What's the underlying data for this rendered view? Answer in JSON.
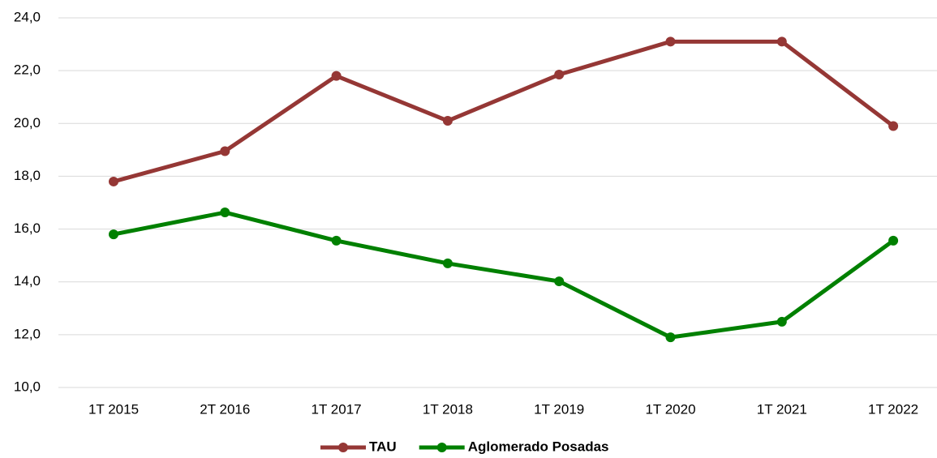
{
  "chart_data": {
    "type": "line",
    "categories": [
      "1T 2015",
      "2T 2016",
      "1T 2017",
      "1T 2018",
      "1T 2019",
      "1T 2020",
      "1T 2021",
      "1T 2022"
    ],
    "series": [
      {
        "name": "TAU",
        "color": "#953735",
        "values": [
          17.8,
          18.95,
          21.8,
          20.1,
          21.85,
          23.1,
          23.1,
          19.9
        ]
      },
      {
        "name": "Aglomerado Posadas",
        "color": "#008000",
        "values": [
          15.8,
          16.63,
          15.56,
          14.7,
          14.02,
          11.9,
          12.49,
          15.56
        ]
      }
    ],
    "ylim": [
      10,
      24
    ],
    "yticks": [
      {
        "value": 10,
        "label": "10,0"
      },
      {
        "value": 12,
        "label": "12,0"
      },
      {
        "value": 14,
        "label": "14,0"
      },
      {
        "value": 16,
        "label": "16,0"
      },
      {
        "value": 18,
        "label": "18,0"
      },
      {
        "value": 20,
        "label": "20,0"
      },
      {
        "value": 22,
        "label": "22,0"
      },
      {
        "value": 24,
        "label": "24,0"
      }
    ],
    "grid": true,
    "legend": "bottom"
  }
}
